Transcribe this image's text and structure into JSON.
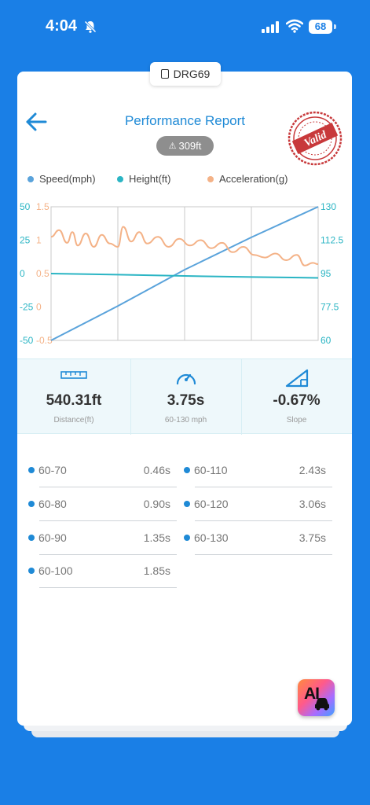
{
  "status_bar": {
    "time": "4:04",
    "battery": "68"
  },
  "header": {
    "device_chip": "DRG69",
    "title": "Performance Report",
    "distance_badge": "309ft",
    "stamp_text": "Valid"
  },
  "chart_data": {
    "type": "line",
    "legend_position": "top",
    "grid": true,
    "series": [
      {
        "name": "Speed(mph)",
        "color": "#5aa3db",
        "axis": "right",
        "range": [
          60,
          130
        ],
        "points": [
          [
            0,
            60
          ],
          [
            0.25,
            78
          ],
          [
            0.5,
            97
          ],
          [
            0.75,
            114
          ],
          [
            1.0,
            130
          ]
        ]
      },
      {
        "name": "Height(ft)",
        "color": "#2bb5c4",
        "axis": "left",
        "range": [
          -50,
          50
        ],
        "points": [
          [
            0,
            0
          ],
          [
            0.25,
            -0.8
          ],
          [
            0.5,
            -1.8
          ],
          [
            0.75,
            -2.6
          ],
          [
            1.0,
            -3.2
          ]
        ]
      },
      {
        "name": "Acceleration(g)",
        "color": "#f4b287",
        "axis": "left2",
        "range": [
          -0.5,
          1.5
        ],
        "points": [
          [
            0.0,
            1.05
          ],
          [
            0.03,
            1.15
          ],
          [
            0.06,
            0.96
          ],
          [
            0.08,
            1.12
          ],
          [
            0.1,
            0.92
          ],
          [
            0.13,
            1.1
          ],
          [
            0.16,
            0.9
          ],
          [
            0.19,
            1.08
          ],
          [
            0.22,
            0.95
          ],
          [
            0.25,
            0.9
          ],
          [
            0.27,
            1.2
          ],
          [
            0.3,
            0.98
          ],
          [
            0.33,
            1.12
          ],
          [
            0.36,
            0.95
          ],
          [
            0.4,
            1.05
          ],
          [
            0.44,
            0.9
          ],
          [
            0.48,
            1.02
          ],
          [
            0.52,
            0.92
          ],
          [
            0.56,
            1.0
          ],
          [
            0.6,
            0.88
          ],
          [
            0.64,
            0.96
          ],
          [
            0.68,
            0.82
          ],
          [
            0.72,
            0.9
          ],
          [
            0.76,
            0.78
          ],
          [
            0.8,
            0.74
          ],
          [
            0.84,
            0.8
          ],
          [
            0.88,
            0.7
          ],
          [
            0.92,
            0.78
          ],
          [
            0.95,
            0.62
          ],
          [
            0.98,
            0.66
          ],
          [
            1.0,
            0.64
          ]
        ]
      }
    ],
    "left_ticks": [
      "50",
      "25",
      "0",
      "-25",
      "-50"
    ],
    "left2_ticks": [
      "1.5",
      "1",
      "0.5",
      "0",
      "-0.5"
    ],
    "right_ticks": [
      "130",
      "112.5",
      "95",
      "77.5",
      "60"
    ]
  },
  "stats": [
    {
      "value": "540.31ft",
      "label": "Distance(ft)",
      "icon": "ruler-icon"
    },
    {
      "value": "3.75s",
      "label": "60-130 mph",
      "icon": "speedometer-icon"
    },
    {
      "value": "-0.67%",
      "label": "Slope",
      "icon": "slope-icon"
    }
  ],
  "splits": [
    {
      "range": "60-70",
      "time": "0.46s"
    },
    {
      "range": "60-110",
      "time": "2.43s"
    },
    {
      "range": "60-80",
      "time": "0.90s"
    },
    {
      "range": "60-120",
      "time": "3.06s"
    },
    {
      "range": "60-90",
      "time": "1.35s"
    },
    {
      "range": "60-130",
      "time": "3.75s"
    },
    {
      "range": "60-100",
      "time": "1.85s"
    }
  ],
  "ai_button": {
    "label": "AI"
  },
  "colors": {
    "background": "#1a7fe6",
    "accent": "#1f8ad6",
    "stamp": "#c8393b"
  }
}
